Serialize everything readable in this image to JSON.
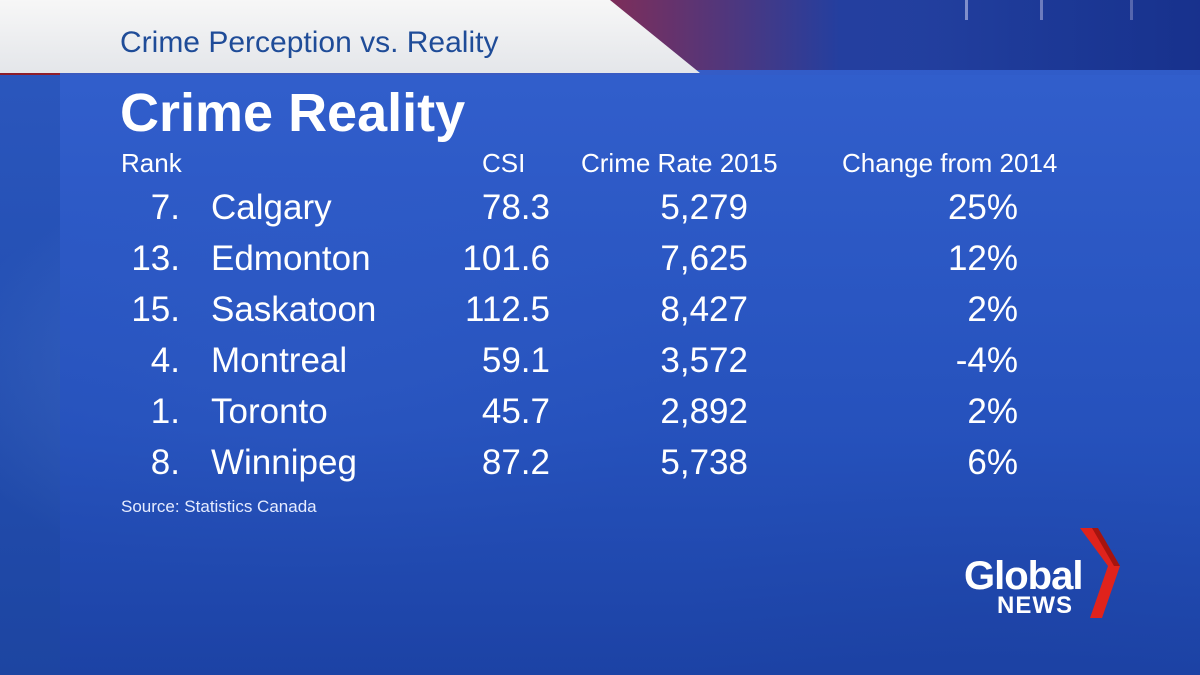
{
  "tab_title": "Crime Perception vs. Reality",
  "heading": "Crime Reality",
  "columns": {
    "rank": "Rank",
    "csi": "CSI",
    "rate": "Crime Rate 2015",
    "change": "Change from 2014"
  },
  "rows": [
    {
      "rank": "7.",
      "city": "Calgary",
      "csi": "78.3",
      "rate": "5,279",
      "change": "25%"
    },
    {
      "rank": "13.",
      "city": "Edmonton",
      "csi": "101.6",
      "rate": "7,625",
      "change": "12%"
    },
    {
      "rank": "15.",
      "city": "Saskatoon",
      "csi": "112.5",
      "rate": "8,427",
      "change": "2%"
    },
    {
      "rank": "4.",
      "city": "Montreal",
      "csi": "59.1",
      "rate": "3,572",
      "change": "-4%"
    },
    {
      "rank": "1.",
      "city": "Toronto",
      "csi": "45.7",
      "rate": "2,892",
      "change": "2%"
    },
    {
      "rank": "8.",
      "city": "Winnipeg",
      "csi": "87.2",
      "rate": "5,738",
      "change": "6%"
    }
  ],
  "source": "Source: Statistics Canada",
  "logo": {
    "line1": "Global",
    "line2": "NEWS",
    "icon": "global-news-chevron-icon",
    "accent_color": "#e0231c"
  }
}
